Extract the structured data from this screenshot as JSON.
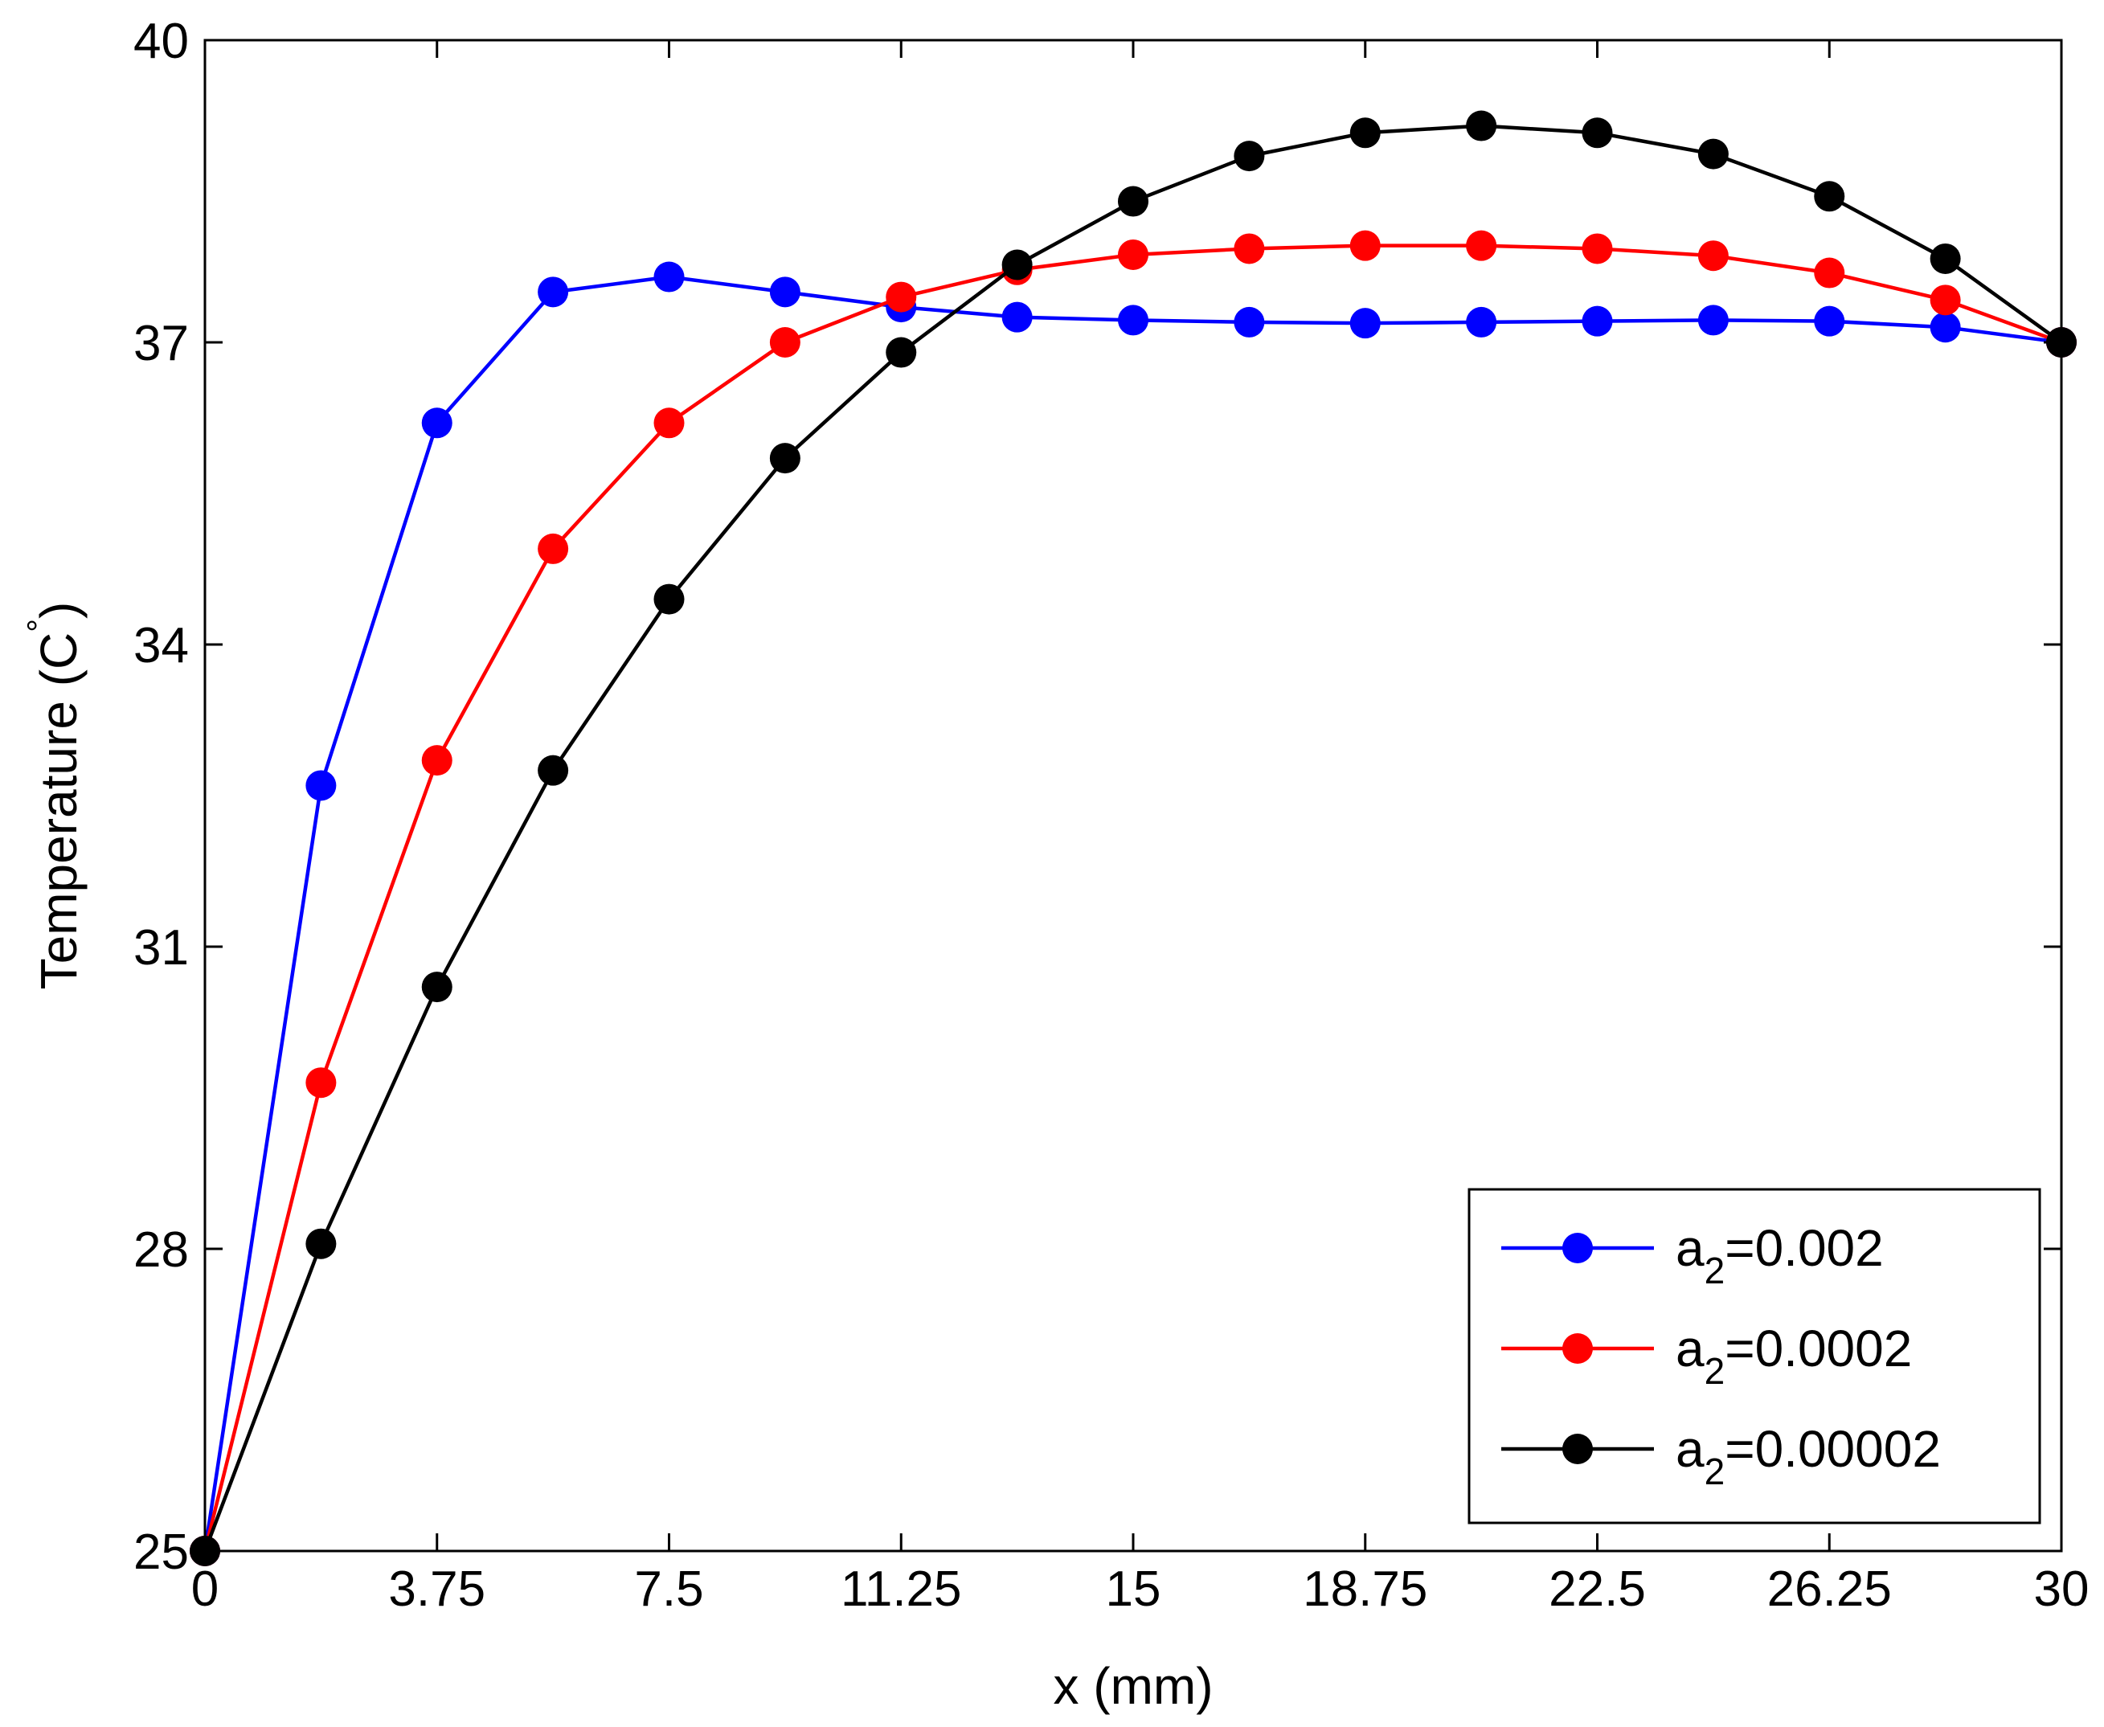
{
  "chart_data": {
    "type": "line",
    "title": "",
    "xlabel": "x (mm)",
    "ylabel": "Temperature (C",
    "ylabel_superscript": "°",
    "ylabel_close": ")",
    "xlim": [
      0,
      30
    ],
    "ylim": [
      25,
      40
    ],
    "xticks": [
      0,
      3.75,
      7.5,
      11.25,
      15,
      18.75,
      22.5,
      26.25,
      30
    ],
    "xtick_labels": [
      "0",
      "3.75",
      "7.5",
      "11.25",
      "15",
      "18.75",
      "22.5",
      "26.25",
      "30"
    ],
    "yticks": [
      25,
      28,
      31,
      34,
      37,
      40
    ],
    "ytick_labels": [
      "25",
      "28",
      "31",
      "34",
      "37",
      "40"
    ],
    "grid": false,
    "legend_position": "bottom-right",
    "x": [
      0,
      1.875,
      3.75,
      5.625,
      7.5,
      9.375,
      11.25,
      13.125,
      15,
      16.875,
      18.75,
      20.625,
      22.5,
      24.375,
      26.25,
      28.125,
      30
    ],
    "series": [
      {
        "name_base": "a",
        "name_sub": "2",
        "name_rest": "=0.002",
        "color": "#0000ff",
        "values": [
          25.0,
          32.6,
          36.2,
          37.5,
          37.65,
          37.5,
          37.35,
          37.25,
          37.22,
          37.2,
          37.19,
          37.2,
          37.21,
          37.22,
          37.21,
          37.15,
          37.0
        ]
      },
      {
        "name_base": "a",
        "name_sub": "2",
        "name_rest": "=0.0002",
        "color": "#ff0000",
        "values": [
          25.0,
          29.65,
          32.85,
          34.95,
          36.2,
          37.0,
          37.45,
          37.72,
          37.87,
          37.93,
          37.96,
          37.96,
          37.93,
          37.86,
          37.69,
          37.42,
          37.0
        ]
      },
      {
        "name_base": "a",
        "name_sub": "2",
        "name_rest": "=0.00002",
        "color": "#000000",
        "values": [
          25.0,
          28.05,
          30.6,
          32.75,
          34.45,
          35.85,
          36.9,
          37.77,
          38.4,
          38.85,
          39.08,
          39.15,
          39.08,
          38.87,
          38.45,
          37.83,
          37.0
        ]
      }
    ]
  }
}
